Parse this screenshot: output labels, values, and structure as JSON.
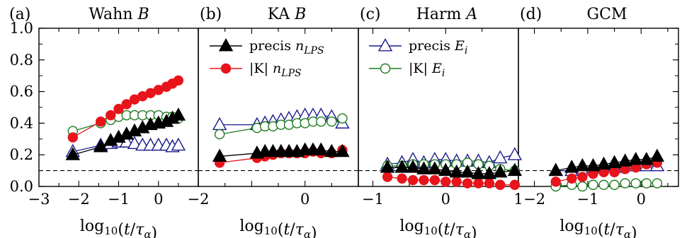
{
  "figure": {
    "ylim": [
      0.0,
      1.0
    ],
    "yticks": [
      "0.0",
      "0.2",
      "0.4",
      "0.6",
      "0.8",
      "1.0"
    ],
    "reference_line_y": 0.1,
    "colors": {
      "black": "#000000",
      "red": "#e8141b",
      "blue": "#1b1b8f",
      "green": "#1e7b1e"
    }
  },
  "legends": {
    "b": [
      {
        "series_key": "precis_n",
        "label": "precis n",
        "sub": "LPS"
      },
      {
        "series_key": "K_n",
        "label": "|K| n",
        "sub": "LPS"
      }
    ],
    "c": [
      {
        "series_key": "precis_E",
        "label": "precis E",
        "sub": "i"
      },
      {
        "series_key": "K_E",
        "label": "|K| E",
        "sub": "i"
      }
    ]
  },
  "chart_data": [
    {
      "type": "line",
      "panel": "a",
      "label": "(a)",
      "title": "Wahn B",
      "xlabel": "log10(t/τα)",
      "xlim": [
        -3.0,
        1.0
      ],
      "xticks": [
        -3,
        -2,
        -1,
        0
      ],
      "series": [
        {
          "key": "precis_n",
          "x": [
            -2.15,
            -1.45,
            -1.2,
            -1.0,
            -0.8,
            -0.6,
            -0.4,
            -0.2,
            0.0,
            0.2,
            0.35,
            0.5
          ],
          "values": [
            0.2,
            0.25,
            0.29,
            0.31,
            0.33,
            0.35,
            0.37,
            0.39,
            0.4,
            0.41,
            0.43,
            0.45
          ]
        },
        {
          "key": "K_n",
          "x": [
            -2.15,
            -1.45,
            -1.2,
            -1.0,
            -0.8,
            -0.6,
            -0.4,
            -0.2,
            0.0,
            0.2,
            0.35,
            0.5
          ],
          "values": [
            0.31,
            0.41,
            0.45,
            0.49,
            0.52,
            0.55,
            0.57,
            0.59,
            0.61,
            0.63,
            0.65,
            0.67
          ]
        },
        {
          "key": "precis_E",
          "x": [
            -2.15,
            -1.45,
            -1.2,
            -1.0,
            -0.8,
            -0.6,
            -0.4,
            -0.2,
            0.0,
            0.2,
            0.35,
            0.5
          ],
          "values": [
            0.22,
            0.26,
            0.27,
            0.28,
            0.28,
            0.27,
            0.26,
            0.26,
            0.26,
            0.26,
            0.25,
            0.26
          ]
        },
        {
          "key": "K_E",
          "x": [
            -2.15,
            -1.45,
            -1.2,
            -1.0,
            -0.8,
            -0.6,
            -0.4,
            -0.2,
            0.0,
            0.2,
            0.35,
            0.5
          ],
          "values": [
            0.35,
            0.4,
            0.42,
            0.44,
            0.45,
            0.45,
            0.45,
            0.45,
            0.45,
            0.44,
            0.44,
            0.43
          ]
        }
      ]
    },
    {
      "type": "line",
      "panel": "b",
      "label": "(b)",
      "title": "KA B",
      "xlabel": "log10(t/τα)",
      "xlim": [
        -2.0,
        1.0
      ],
      "xticks": [
        -2,
        0
      ],
      "series": [
        {
          "key": "precis_n",
          "x": [
            -1.6,
            -0.9,
            -0.75,
            -0.6,
            -0.45,
            -0.3,
            -0.15,
            0.0,
            0.15,
            0.3,
            0.5,
            0.7
          ],
          "values": [
            0.19,
            0.21,
            0.22,
            0.22,
            0.22,
            0.22,
            0.22,
            0.23,
            0.23,
            0.23,
            0.22,
            0.22
          ]
        },
        {
          "key": "K_n",
          "x": [
            -1.6,
            -0.9,
            -0.75,
            -0.6,
            -0.45,
            -0.3,
            -0.15,
            0.0,
            0.15,
            0.3,
            0.5,
            0.7
          ],
          "values": [
            0.15,
            0.18,
            0.19,
            0.2,
            0.21,
            0.21,
            0.21,
            0.21,
            0.22,
            0.21,
            0.21,
            0.23
          ]
        },
        {
          "key": "precis_E",
          "x": [
            -1.6,
            -0.9,
            -0.75,
            -0.6,
            -0.45,
            -0.3,
            -0.15,
            0.0,
            0.15,
            0.3,
            0.5,
            0.7
          ],
          "values": [
            0.39,
            0.39,
            0.4,
            0.41,
            0.42,
            0.43,
            0.44,
            0.45,
            0.45,
            0.45,
            0.44,
            0.4
          ]
        },
        {
          "key": "K_E",
          "x": [
            -1.6,
            -0.9,
            -0.75,
            -0.6,
            -0.45,
            -0.3,
            -0.15,
            0.0,
            0.15,
            0.3,
            0.5,
            0.7
          ],
          "values": [
            0.33,
            0.37,
            0.38,
            0.38,
            0.39,
            0.39,
            0.4,
            0.4,
            0.41,
            0.41,
            0.41,
            0.43
          ]
        }
      ]
    },
    {
      "type": "line",
      "panel": "c",
      "label": "(c)",
      "title": "Harm A",
      "xlabel": "log10(t/τα)",
      "xlim": [
        -1.2,
        1.0
      ],
      "xticks": [
        -1,
        0,
        1
      ],
      "series": [
        {
          "key": "precis_n",
          "x": [
            -0.8,
            -0.6,
            -0.45,
            -0.3,
            -0.15,
            0.0,
            0.15,
            0.3,
            0.45,
            0.6,
            0.75,
            0.95
          ],
          "values": [
            0.12,
            0.12,
            0.12,
            0.11,
            0.11,
            0.1,
            0.09,
            0.09,
            0.08,
            0.08,
            0.09,
            0.1
          ]
        },
        {
          "key": "K_n",
          "x": [
            -0.8,
            -0.6,
            -0.45,
            -0.3,
            -0.15,
            0.0,
            0.15,
            0.3,
            0.45,
            0.6,
            0.75,
            0.95
          ],
          "values": [
            0.06,
            0.05,
            0.04,
            0.04,
            0.04,
            0.03,
            0.03,
            0.02,
            0.02,
            0.02,
            0.01,
            0.01
          ]
        },
        {
          "key": "precis_E",
          "x": [
            -0.8,
            -0.6,
            -0.45,
            -0.3,
            -0.15,
            0.0,
            0.15,
            0.3,
            0.45,
            0.6,
            0.75,
            0.95
          ],
          "values": [
            0.14,
            0.15,
            0.17,
            0.15,
            0.17,
            0.17,
            0.16,
            0.16,
            0.16,
            0.15,
            0.18,
            0.2
          ]
        },
        {
          "key": "K_E",
          "x": [
            -0.8,
            -0.6,
            -0.45,
            -0.3,
            -0.15,
            0.0,
            0.15,
            0.3,
            0.45,
            0.6,
            0.75,
            0.95
          ],
          "values": [
            0.13,
            0.13,
            0.14,
            0.14,
            0.14,
            0.14,
            0.14,
            0.15,
            0.14,
            0.13,
            0.11,
            0.1
          ]
        }
      ]
    },
    {
      "type": "line",
      "panel": "d",
      "label": "(d)",
      "title": "GCM",
      "xlabel": "log10(t/τα)",
      "xlim": [
        -2.3,
        0.7
      ],
      "xticks": [
        -2,
        -1,
        0
      ],
      "series": [
        {
          "key": "precis_n",
          "x": [
            -1.6,
            -1.3,
            -1.1,
            -0.9,
            -0.7,
            -0.5,
            -0.3,
            -0.1,
            0.1,
            0.3
          ],
          "values": [
            0.1,
            0.12,
            0.13,
            0.13,
            0.14,
            0.15,
            0.16,
            0.17,
            0.17,
            0.19
          ]
        },
        {
          "key": "K_n",
          "x": [
            -1.6,
            -1.3,
            -1.1,
            -0.9,
            -0.7,
            -0.5,
            -0.3,
            -0.1,
            0.1,
            0.3
          ],
          "values": [
            0.03,
            0.05,
            0.06,
            0.08,
            0.09,
            0.09,
            0.11,
            0.12,
            0.14,
            0.15
          ]
        },
        {
          "key": "precis_E",
          "x": [
            -1.6,
            -1.3,
            -1.1,
            -0.9,
            -0.7,
            -0.5,
            -0.3,
            -0.1,
            0.1,
            0.3
          ],
          "values": [
            0.1,
            0.1,
            0.11,
            0.12,
            0.12,
            0.12,
            0.13,
            0.13,
            0.13,
            0.13
          ]
        },
        {
          "key": "K_E",
          "x": [
            -1.6,
            -1.3,
            -1.1,
            -0.9,
            -0.7,
            -0.5,
            -0.3,
            -0.1,
            0.1,
            0.3
          ],
          "values": [
            0.0,
            0.01,
            0.0,
            0.01,
            0.01,
            0.01,
            0.02,
            0.02,
            0.02,
            0.02
          ]
        }
      ]
    }
  ]
}
